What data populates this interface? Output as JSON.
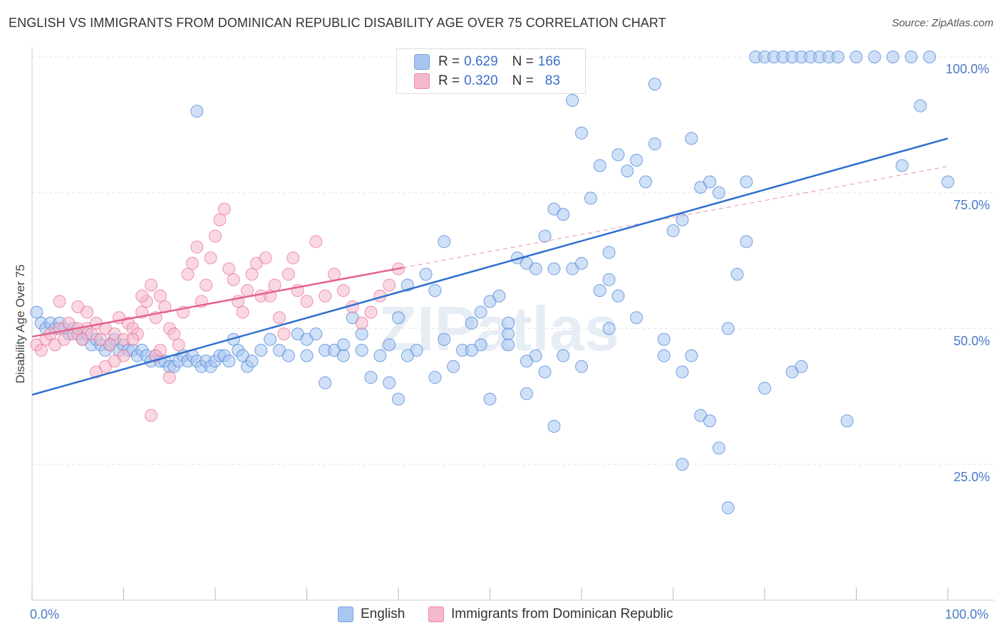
{
  "header": {
    "title": "ENGLISH VS IMMIGRANTS FROM DOMINICAN REPUBLIC DISABILITY AGE OVER 75 CORRELATION CHART",
    "source": "Source: ZipAtlas.com"
  },
  "watermark": "ZIPatlas",
  "legend": {
    "rows": [
      {
        "r_label": "R =",
        "r_value": "0.629",
        "n_label": "N =",
        "n_value": "166",
        "color": "#a9c6f0"
      },
      {
        "r_label": "R =",
        "r_value": "0.320",
        "n_label": "N =",
        "n_value": "83",
        "color": "#f6b8cb"
      }
    ]
  },
  "bottom_legend": [
    {
      "label": "English",
      "color": "#a9c6f0"
    },
    {
      "label": "Immigrants from Dominican Republic",
      "color": "#f6b8cb"
    }
  ],
  "axis_labels": {
    "x_min": "0.0%",
    "x_max": "100.0%",
    "y_ticks": [
      "100.0%",
      "75.0%",
      "50.0%",
      "25.0%"
    ]
  },
  "chart_data": {
    "type": "scatter",
    "title": "ENGLISH VS IMMIGRANTS FROM DOMINICAN REPUBLIC DISABILITY AGE OVER 75 CORRELATION CHART",
    "xlabel": "",
    "ylabel": "Disability Age Over 75",
    "xlim": [
      0,
      100
    ],
    "ylim": [
      0,
      100
    ],
    "y_ticks": [
      25,
      50,
      75,
      100
    ],
    "grid": true,
    "legend_position": "top-center",
    "series": [
      {
        "name": "English",
        "color": "#4a86d8",
        "fill": "#a9c6f0",
        "trend": {
          "x": [
            0,
            100
          ],
          "y": [
            37.8,
            85.0
          ]
        },
        "points": [
          [
            0.5,
            53
          ],
          [
            1,
            51
          ],
          [
            1.5,
            50
          ],
          [
            2,
            51
          ],
          [
            2.5,
            50
          ],
          [
            3,
            51
          ],
          [
            3.5,
            50
          ],
          [
            4,
            49
          ],
          [
            4.5,
            50
          ],
          [
            5,
            49
          ],
          [
            5.5,
            48
          ],
          [
            6,
            49
          ],
          [
            6.5,
            47
          ],
          [
            7,
            48
          ],
          [
            7.5,
            47
          ],
          [
            8,
            46
          ],
          [
            8.5,
            47
          ],
          [
            9,
            48
          ],
          [
            9.5,
            46
          ],
          [
            10,
            47
          ],
          [
            10.5,
            46
          ],
          [
            11,
            46
          ],
          [
            11.5,
            45
          ],
          [
            12,
            46
          ],
          [
            12.5,
            45
          ],
          [
            13,
            44
          ],
          [
            13.5,
            45
          ],
          [
            14,
            44
          ],
          [
            14.5,
            44
          ],
          [
            15,
            43
          ],
          [
            15.5,
            43
          ],
          [
            16,
            44
          ],
          [
            16.5,
            45
          ],
          [
            17,
            44
          ],
          [
            17.5,
            45
          ],
          [
            18,
            44
          ],
          [
            18.5,
            43
          ],
          [
            19,
            44
          ],
          [
            19.5,
            43
          ],
          [
            20,
            44
          ],
          [
            20.5,
            45
          ],
          [
            21,
            45
          ],
          [
            21.5,
            44
          ],
          [
            22,
            48
          ],
          [
            22.5,
            46
          ],
          [
            23,
            45
          ],
          [
            23.5,
            43
          ],
          [
            24,
            44
          ],
          [
            25,
            46
          ],
          [
            26,
            48
          ],
          [
            27,
            46
          ],
          [
            28,
            45
          ],
          [
            29,
            49
          ],
          [
            30,
            48
          ],
          [
            31,
            49
          ],
          [
            32,
            46
          ],
          [
            33,
            46
          ],
          [
            34,
            47
          ],
          [
            35,
            52
          ],
          [
            36,
            46
          ],
          [
            37,
            41
          ],
          [
            38,
            45
          ],
          [
            39,
            47
          ],
          [
            40,
            52
          ],
          [
            41,
            58
          ],
          [
            42,
            46
          ],
          [
            43,
            60
          ],
          [
            44,
            57
          ],
          [
            45,
            66
          ],
          [
            46,
            43
          ],
          [
            47,
            46
          ],
          [
            48,
            51
          ],
          [
            49,
            47
          ],
          [
            50,
            55
          ],
          [
            51,
            56
          ],
          [
            52,
            49
          ],
          [
            53,
            63
          ],
          [
            54,
            62
          ],
          [
            55,
            61
          ],
          [
            56,
            67
          ],
          [
            57,
            72
          ],
          [
            58,
            71
          ],
          [
            59,
            61
          ],
          [
            60,
            62
          ],
          [
            61,
            74
          ],
          [
            62,
            80
          ],
          [
            63,
            59
          ],
          [
            64,
            56
          ],
          [
            65,
            79
          ],
          [
            66,
            81
          ],
          [
            67,
            77
          ],
          [
            68,
            84
          ],
          [
            69,
            45
          ],
          [
            70,
            68
          ],
          [
            71,
            70
          ],
          [
            72,
            85
          ],
          [
            73,
            76
          ],
          [
            74,
            77
          ],
          [
            75,
            75
          ],
          [
            76,
            50
          ],
          [
            77,
            60
          ],
          [
            78,
            77
          ],
          [
            79,
            100
          ],
          [
            80,
            100
          ],
          [
            81,
            100
          ],
          [
            82,
            100
          ],
          [
            83,
            100
          ],
          [
            84,
            100
          ],
          [
            85,
            100
          ],
          [
            86,
            100
          ],
          [
            87,
            100
          ],
          [
            88,
            100
          ],
          [
            90,
            100
          ],
          [
            92,
            100
          ],
          [
            94,
            100
          ],
          [
            96,
            100
          ],
          [
            98,
            100
          ],
          [
            18,
            90
          ],
          [
            60,
            86
          ],
          [
            64,
            82
          ],
          [
            59,
            92
          ],
          [
            68,
            95
          ],
          [
            97,
            91
          ],
          [
            95,
            80
          ],
          [
            100,
            77
          ],
          [
            63,
            64
          ],
          [
            57,
            61
          ],
          [
            54,
            38
          ],
          [
            62,
            57
          ],
          [
            66,
            52
          ],
          [
            58,
            45
          ],
          [
            60,
            43
          ],
          [
            55,
            45
          ],
          [
            45,
            48
          ],
          [
            48,
            46
          ],
          [
            49,
            53
          ],
          [
            52,
            51
          ],
          [
            54,
            44
          ],
          [
            56,
            42
          ],
          [
            57,
            32
          ],
          [
            63,
            50
          ],
          [
            69,
            48
          ],
          [
            71,
            42
          ],
          [
            72,
            45
          ],
          [
            73,
            34
          ],
          [
            74,
            33
          ],
          [
            75,
            28
          ],
          [
            76,
            17
          ],
          [
            80,
            39
          ],
          [
            83,
            42
          ],
          [
            84,
            43
          ],
          [
            89,
            33
          ],
          [
            78,
            66
          ],
          [
            71,
            25
          ],
          [
            44,
            41
          ],
          [
            40,
            37
          ],
          [
            32,
            40
          ],
          [
            50,
            37
          ],
          [
            52,
            47
          ],
          [
            39,
            40
          ],
          [
            41,
            45
          ],
          [
            36,
            49
          ],
          [
            34,
            45
          ],
          [
            30,
            45
          ]
        ]
      },
      {
        "name": "Immigrants from Dominican Republic",
        "color": "#e97396",
        "fill": "#f6b8cb",
        "trend": {
          "x": [
            0,
            40.5
          ],
          "y": [
            48.5,
            61.2
          ]
        },
        "points": [
          [
            0.5,
            47
          ],
          [
            1,
            46
          ],
          [
            1.5,
            48
          ],
          [
            2,
            49
          ],
          [
            2.5,
            47
          ],
          [
            3,
            50
          ],
          [
            3.5,
            48
          ],
          [
            4,
            51
          ],
          [
            4.5,
            49
          ],
          [
            5,
            50
          ],
          [
            5.5,
            48
          ],
          [
            6,
            50
          ],
          [
            6.5,
            49
          ],
          [
            7,
            51
          ],
          [
            7.5,
            48
          ],
          [
            8,
            50
          ],
          [
            8.5,
            47
          ],
          [
            9,
            49
          ],
          [
            9.5,
            52
          ],
          [
            10,
            48
          ],
          [
            10.5,
            51
          ],
          [
            11,
            50
          ],
          [
            11.5,
            49
          ],
          [
            12,
            53
          ],
          [
            12.5,
            55
          ],
          [
            13,
            58
          ],
          [
            13.5,
            52
          ],
          [
            14,
            56
          ],
          [
            14.5,
            54
          ],
          [
            15,
            50
          ],
          [
            15.5,
            49
          ],
          [
            16,
            47
          ],
          [
            16.5,
            53
          ],
          [
            17,
            60
          ],
          [
            17.5,
            62
          ],
          [
            18,
            65
          ],
          [
            18.5,
            55
          ],
          [
            19,
            58
          ],
          [
            19.5,
            63
          ],
          [
            20,
            67
          ],
          [
            20.5,
            70
          ],
          [
            21,
            72
          ],
          [
            21.5,
            61
          ],
          [
            22,
            59
          ],
          [
            22.5,
            55
          ],
          [
            23,
            53
          ],
          [
            23.5,
            57
          ],
          [
            24,
            60
          ],
          [
            24.5,
            62
          ],
          [
            25,
            56
          ],
          [
            25.5,
            63
          ],
          [
            26,
            56
          ],
          [
            26.5,
            58
          ],
          [
            27,
            52
          ],
          [
            27.5,
            49
          ],
          [
            28,
            60
          ],
          [
            28.5,
            63
          ],
          [
            29,
            57
          ],
          [
            30,
            55
          ],
          [
            31,
            66
          ],
          [
            32,
            56
          ],
          [
            33,
            60
          ],
          [
            34,
            57
          ],
          [
            35,
            54
          ],
          [
            36,
            51
          ],
          [
            37,
            53
          ],
          [
            38,
            56
          ],
          [
            39,
            58
          ],
          [
            40,
            61
          ],
          [
            3,
            55
          ],
          [
            5,
            54
          ],
          [
            6,
            53
          ],
          [
            7,
            42
          ],
          [
            8,
            43
          ],
          [
            9,
            44
          ],
          [
            10,
            45
          ],
          [
            11,
            48
          ],
          [
            12,
            56
          ],
          [
            13,
            34
          ],
          [
            13.5,
            45
          ],
          [
            14,
            46
          ],
          [
            15,
            41
          ]
        ]
      }
    ]
  }
}
